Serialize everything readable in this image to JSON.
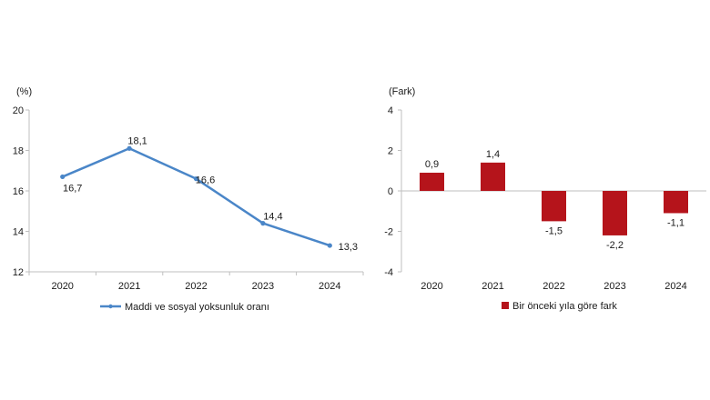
{
  "chart_data": [
    {
      "type": "line",
      "unit_label": "(%)",
      "categories": [
        "2020",
        "2021",
        "2022",
        "2023",
        "2024"
      ],
      "series": [
        {
          "name": "Maddi ve sosyal yoksunluk oranı",
          "values": [
            16.7,
            18.1,
            16.6,
            14.4,
            13.3
          ],
          "labels": [
            "16,7",
            "18,1",
            "16,6",
            "14,4",
            "13,3"
          ]
        }
      ],
      "ylim": [
        12,
        20
      ],
      "yticks": [
        "12",
        "14",
        "16",
        "18",
        "20"
      ],
      "color": "#4a86c8",
      "grid": false,
      "legend_position": "bottom"
    },
    {
      "type": "bar",
      "unit_label": "(Fark)",
      "categories": [
        "2020",
        "2021",
        "2022",
        "2023",
        "2024"
      ],
      "series": [
        {
          "name": "Bir önceki yıla göre fark",
          "values": [
            0.9,
            1.4,
            -1.5,
            -2.2,
            -1.1
          ],
          "labels": [
            "0,9",
            "1,4",
            "-1,5",
            "-2,2",
            "-1,1"
          ]
        }
      ],
      "ylim": [
        -4,
        4
      ],
      "yticks": [
        "-4",
        "-2",
        "0",
        "2",
        "4"
      ],
      "color": "#b5141b",
      "grid": false,
      "legend_position": "bottom"
    }
  ]
}
